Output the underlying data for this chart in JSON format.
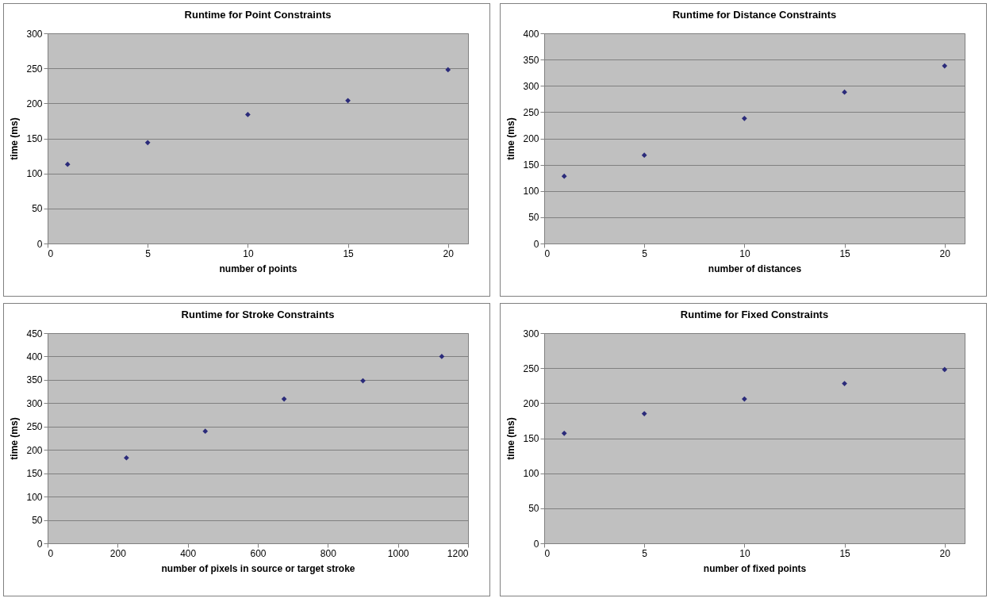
{
  "chart_data": [
    {
      "type": "scatter",
      "title": "Runtime for Point Constraints",
      "xlabel": "number of points",
      "ylabel": "time (ms)",
      "x": [
        1,
        5,
        10,
        15,
        20
      ],
      "series": [
        {
          "color": "#2b2b7a",
          "values": [
            113,
            144,
            184,
            204,
            248
          ]
        }
      ],
      "xlim": [
        0,
        21
      ],
      "xticks": [
        0,
        5,
        10,
        15,
        20
      ],
      "ylim": [
        0,
        300
      ],
      "yticks": [
        0,
        50,
        100,
        150,
        200,
        250,
        300
      ],
      "grid": "y",
      "marker": "diamond"
    },
    {
      "type": "scatter",
      "title": "Runtime for Distance Constraints",
      "xlabel": "number of distances",
      "ylabel": "time (ms)",
      "x": [
        1,
        5,
        10,
        15,
        20
      ],
      "series": [
        {
          "color": "#2b2b7a",
          "values": [
            128,
            168,
            238,
            288,
            338
          ]
        }
      ],
      "xlim": [
        0,
        21
      ],
      "xticks": [
        0,
        5,
        10,
        15,
        20
      ],
      "ylim": [
        0,
        400
      ],
      "yticks": [
        0,
        50,
        100,
        150,
        200,
        250,
        300,
        350,
        400
      ],
      "grid": "y",
      "marker": "diamond"
    },
    {
      "type": "scatter",
      "title": "Runtime for Stroke Constraints",
      "xlabel": "number of pixels in source or target stroke",
      "ylabel": "time (ms)",
      "x": [
        225,
        450,
        675,
        900,
        1125
      ],
      "series": [
        {
          "color": "#2b2b7a",
          "values": [
            183,
            240,
            309,
            348,
            400
          ]
        }
      ],
      "xlim": [
        0,
        1200
      ],
      "xticks": [
        0,
        200,
        400,
        600,
        800,
        1000,
        1200
      ],
      "ylim": [
        0,
        450
      ],
      "yticks": [
        0,
        50,
        100,
        150,
        200,
        250,
        300,
        350,
        400,
        450
      ],
      "grid": "y",
      "marker": "diamond"
    },
    {
      "type": "scatter",
      "title": "Runtime for Fixed Constraints",
      "xlabel": "number of fixed points",
      "ylabel": "time (ms)",
      "x": [
        1,
        5,
        10,
        15,
        20
      ],
      "series": [
        {
          "color": "#2b2b7a",
          "values": [
            157,
            185,
            206,
            228,
            248
          ]
        }
      ],
      "xlim": [
        0,
        21
      ],
      "xticks": [
        0,
        5,
        10,
        15,
        20
      ],
      "ylim": [
        0,
        300
      ],
      "yticks": [
        0,
        50,
        100,
        150,
        200,
        250,
        300
      ],
      "grid": "y",
      "marker": "diamond"
    }
  ]
}
